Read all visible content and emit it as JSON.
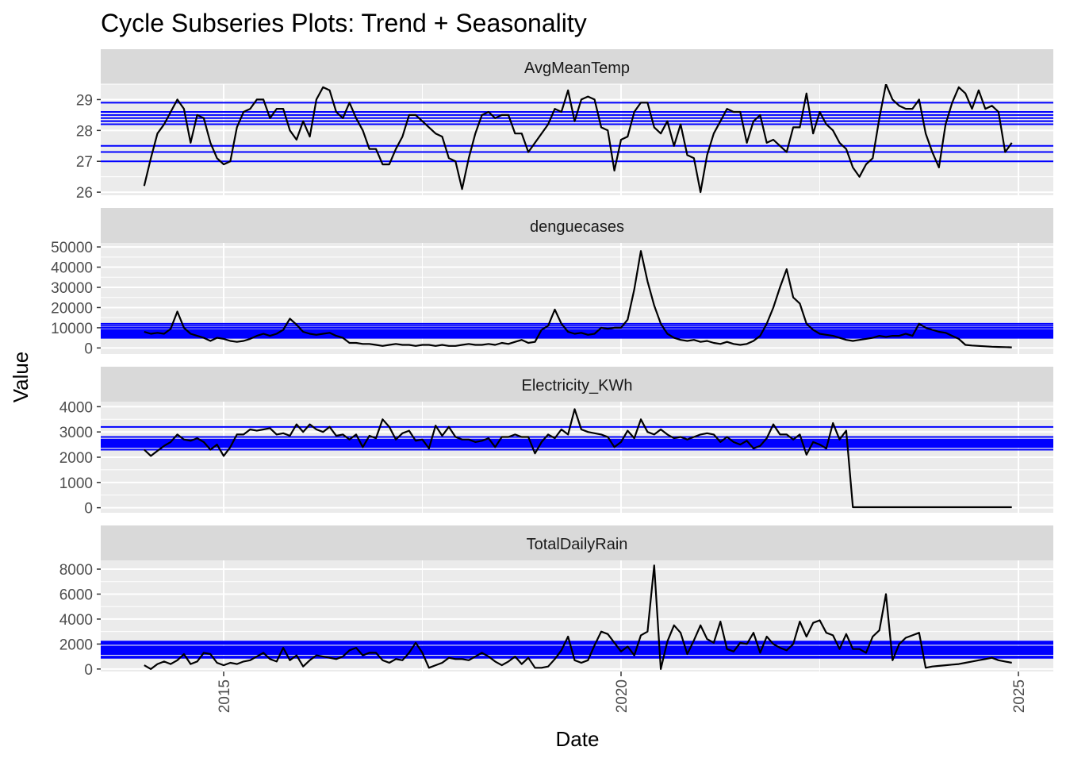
{
  "chart_data": {
    "type": "line",
    "title": "Cycle Subseries Plots: Trend + Seasonality",
    "xlabel": "Date",
    "ylabel": "Value",
    "x_ticks": [
      "2015",
      "2020",
      "2025"
    ],
    "x_start": "2014-01",
    "x_end": "2024-12",
    "line_color": "#000000",
    "mean_line_color": "#0000ff",
    "panel_background": "#ebebeb",
    "strip_background": "#d9d9d9",
    "grid": true,
    "panels": [
      {
        "name": "AvgMeanTemp",
        "ylim": [
          25.9,
          29.5
        ],
        "y_ticks": [
          "26",
          "27",
          "28",
          "29"
        ],
        "monthly_means": [
          27.0,
          27.3,
          27.5,
          28.2,
          28.5,
          28.6,
          28.6,
          28.4,
          28.3,
          28.9,
          28.6,
          28.3
        ],
        "values": [
          26.2,
          27.1,
          27.9,
          28.2,
          28.6,
          29.0,
          28.7,
          27.6,
          28.5,
          28.4,
          27.6,
          27.1,
          26.9,
          27.0,
          28.1,
          28.6,
          28.7,
          29.0,
          29.0,
          28.4,
          28.7,
          28.7,
          28.0,
          27.7,
          28.3,
          27.8,
          29.0,
          29.4,
          29.3,
          28.6,
          28.4,
          28.9,
          28.4,
          28.0,
          27.4,
          27.4,
          26.9,
          26.9,
          27.4,
          27.8,
          28.5,
          28.5,
          28.3,
          28.1,
          27.9,
          27.8,
          27.1,
          27.0,
          26.1,
          27.1,
          27.9,
          28.5,
          28.6,
          28.4,
          28.5,
          28.5,
          27.9,
          27.9,
          27.3,
          27.6,
          27.9,
          28.2,
          28.7,
          28.6,
          29.3,
          28.3,
          29.0,
          29.1,
          29.0,
          28.1,
          28.0,
          26.7,
          27.7,
          27.8,
          28.6,
          28.9,
          28.9,
          28.1,
          27.9,
          28.3,
          27.5,
          28.2,
          27.2,
          27.1,
          26.0,
          27.2,
          27.9,
          28.3,
          28.7,
          28.6,
          28.6,
          27.6,
          28.3,
          28.5,
          27.6,
          27.7,
          27.5,
          27.3,
          28.1,
          28.1,
          29.2,
          27.9,
          28.6,
          28.2,
          28.0,
          27.6,
          27.4,
          26.8,
          26.5,
          26.9,
          27.1,
          28.4,
          29.5,
          29.0,
          28.8,
          28.7,
          28.7,
          29.0,
          27.9,
          27.3,
          26.8,
          28.2,
          28.9,
          29.4,
          29.2,
          28.7,
          29.3,
          28.7,
          28.8,
          28.6,
          27.3,
          27.6
        ]
      },
      {
        "name": "denguecases",
        "ylim": [
          -3000,
          52000
        ],
        "y_ticks": [
          "0",
          "10000",
          "20000",
          "30000",
          "40000",
          "50000"
        ],
        "monthly_means": [
          5000,
          5500,
          6000,
          6500,
          7000,
          7500,
          8000,
          8500,
          9000,
          10000,
          11000,
          12000
        ],
        "values": [
          8000,
          7000,
          7500,
          7000,
          9500,
          18000,
          10000,
          7000,
          6000,
          5000,
          3500,
          5000,
          4500,
          3500,
          3000,
          3500,
          4500,
          6000,
          7000,
          6000,
          7000,
          9000,
          14500,
          11500,
          8000,
          7000,
          6500,
          7000,
          7500,
          6000,
          5000,
          2500,
          2500,
          2000,
          2000,
          1500,
          1000,
          1500,
          2000,
          1500,
          1500,
          1000,
          1500,
          1500,
          1000,
          1500,
          1000,
          1000,
          1500,
          2000,
          1500,
          1500,
          2000,
          1500,
          2500,
          2000,
          3000,
          4000,
          2500,
          3000,
          9000,
          11000,
          19000,
          12000,
          8000,
          7000,
          7500,
          6500,
          7000,
          10000,
          9500,
          10000,
          10000,
          14000,
          29000,
          48000,
          33000,
          21000,
          12000,
          7000,
          5000,
          4000,
          3500,
          4000,
          3000,
          3500,
          2500,
          2000,
          3000,
          2000,
          1500,
          2000,
          3500,
          6000,
          12000,
          20000,
          30000,
          39000,
          25000,
          22000,
          12000,
          9000,
          7000,
          6500,
          6000,
          5000,
          4000,
          3500,
          4000,
          4500,
          5000,
          6000,
          5500,
          6000,
          6000,
          7000,
          6000,
          12000,
          10000,
          9000,
          8000,
          7500,
          6000,
          4500,
          1500,
          1200,
          1000,
          800,
          600,
          500,
          400,
          300
        ]
      },
      {
        "name": "Electricity_KWh",
        "ylim": [
          -200,
          4200
        ],
        "y_ticks": [
          "0",
          "1000",
          "2000",
          "3000",
          "4000"
        ],
        "monthly_means": [
          2300,
          2400,
          2450,
          2500,
          2550,
          2600,
          2650,
          2700,
          2800,
          3200,
          2500,
          2600
        ],
        "values": [
          2300,
          2050,
          2250,
          2450,
          2600,
          2900,
          2700,
          2650,
          2750,
          2600,
          2300,
          2500,
          2050,
          2400,
          2900,
          2900,
          3100,
          3050,
          3100,
          3150,
          2900,
          2950,
          2850,
          3300,
          3000,
          3300,
          3100,
          3000,
          3200,
          2850,
          2900,
          2700,
          2900,
          2400,
          2850,
          2750,
          3500,
          3200,
          2700,
          2950,
          3050,
          2650,
          2700,
          2350,
          3250,
          2850,
          3200,
          2800,
          2700,
          2700,
          2600,
          2650,
          2750,
          2400,
          2800,
          2800,
          2900,
          2800,
          2800,
          2150,
          2600,
          2900,
          2750,
          3100,
          2900,
          3900,
          3100,
          3000,
          2950,
          2900,
          2800,
          2400,
          2600,
          3050,
          2750,
          3500,
          3000,
          2900,
          3100,
          2900,
          2750,
          2800,
          2700,
          2800,
          2900,
          2950,
          2900,
          2600,
          2800,
          2600,
          2500,
          2650,
          2350,
          2450,
          2750,
          3300,
          2900,
          2900,
          2700,
          2900,
          2100,
          2600,
          2500,
          2350,
          3350,
          2700,
          3050,
          20,
          20,
          20,
          20,
          20,
          20,
          20,
          20,
          20,
          20,
          20,
          20,
          20,
          20,
          20,
          20,
          20,
          20,
          20,
          20,
          20,
          20,
          20,
          20,
          20
        ]
      },
      {
        "name": "TotalDailyRain",
        "ylim": [
          -200,
          8700
        ],
        "y_ticks": [
          "0",
          "2000",
          "4000",
          "6000",
          "8000"
        ],
        "monthly_means": [
          900,
          1000,
          1200,
          1300,
          1400,
          1500,
          1600,
          1700,
          1800,
          2000,
          2100,
          2200
        ],
        "values": [
          300,
          0,
          400,
          600,
          400,
          700,
          1200,
          400,
          600,
          1300,
          1200,
          500,
          300,
          500,
          400,
          600,
          700,
          1000,
          1300,
          800,
          600,
          1700,
          700,
          1100,
          200,
          700,
          1100,
          1000,
          900,
          800,
          1000,
          1500,
          1700,
          1100,
          1300,
          1300,
          700,
          500,
          800,
          700,
          1300,
          2100,
          1300,
          100,
          300,
          500,
          900,
          800,
          800,
          700,
          1000,
          1300,
          1000,
          600,
          300,
          600,
          1000,
          400,
          900,
          100,
          100,
          200,
          800,
          1500,
          2600,
          700,
          500,
          700,
          1900,
          3000,
          2800,
          2100,
          1400,
          1800,
          1100,
          2700,
          3000,
          8300,
          0,
          2200,
          3500,
          2900,
          1200,
          2300,
          3500,
          2400,
          2100,
          3800,
          1600,
          1400,
          2100,
          2000,
          2900,
          1300,
          2600,
          2000,
          1700,
          1500,
          2000,
          3800,
          2600,
          3700,
          3900,
          2900,
          2700,
          1600,
          2800,
          1600,
          1600,
          1300,
          2600,
          3100,
          6000,
          700,
          2000,
          2500,
          2700,
          2900,
          100,
          200,
          250,
          300,
          350,
          400,
          500,
          600,
          700,
          800,
          900,
          700,
          600,
          500
        ]
      }
    ]
  }
}
